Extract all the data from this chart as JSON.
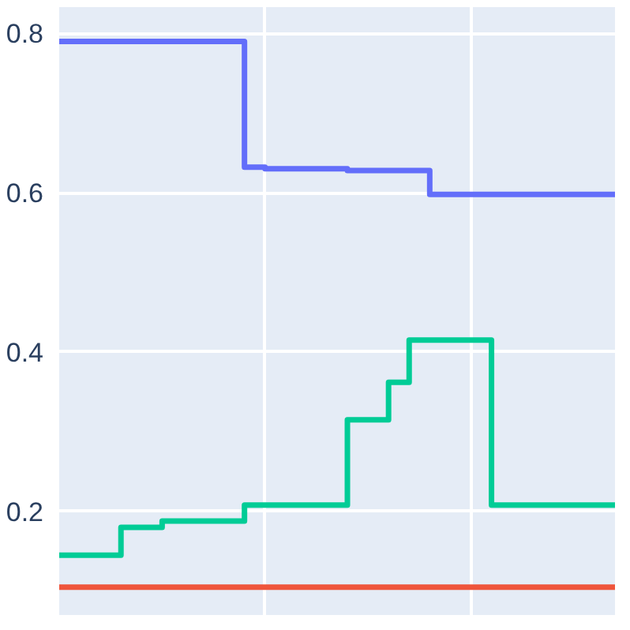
{
  "chart_data": {
    "type": "step",
    "categories": [
      null,
      null,
      null,
      null,
      null,
      null,
      null,
      null,
      null,
      null,
      null,
      null,
      null,
      null,
      null,
      null,
      null,
      null,
      null,
      null,
      null,
      null,
      null,
      null,
      null,
      null,
      null,
      null
    ],
    "ylim": [
      0.07,
      0.833
    ],
    "yticks": [
      0.2,
      0.4,
      0.6,
      0.8
    ],
    "grid": true,
    "series": [
      {
        "color": "#636efa",
        "values": [
          0.79,
          0.79,
          0.79,
          0.79,
          0.79,
          0.79,
          0.79,
          0.79,
          0.79,
          0.632,
          0.63,
          0.63,
          0.63,
          0.63,
          0.628,
          0.628,
          0.628,
          0.628,
          0.598,
          0.598,
          0.598,
          0.598,
          0.598,
          0.598,
          0.598,
          0.598,
          0.598,
          0.598
        ]
      },
      {
        "color": "#00cc96",
        "values": [
          0.145,
          0.145,
          0.145,
          0.18,
          0.18,
          0.188,
          0.188,
          0.188,
          0.188,
          0.208,
          0.208,
          0.208,
          0.208,
          0.208,
          0.315,
          0.315,
          0.362,
          0.415,
          0.415,
          0.415,
          0.415,
          0.208,
          0.208,
          0.208,
          0.208,
          0.208,
          0.208,
          0.208
        ]
      },
      {
        "color": "#ef553b",
        "values": [
          0.105,
          0.105,
          0.105,
          0.105,
          0.105,
          0.105,
          0.105,
          0.105,
          0.105,
          0.105,
          0.105,
          0.105,
          0.105,
          0.105,
          0.105,
          0.105,
          0.105,
          0.105,
          0.105,
          0.105,
          0.105,
          0.105,
          0.105,
          0.105,
          0.105,
          0.105,
          0.105,
          0.105
        ]
      }
    ]
  }
}
